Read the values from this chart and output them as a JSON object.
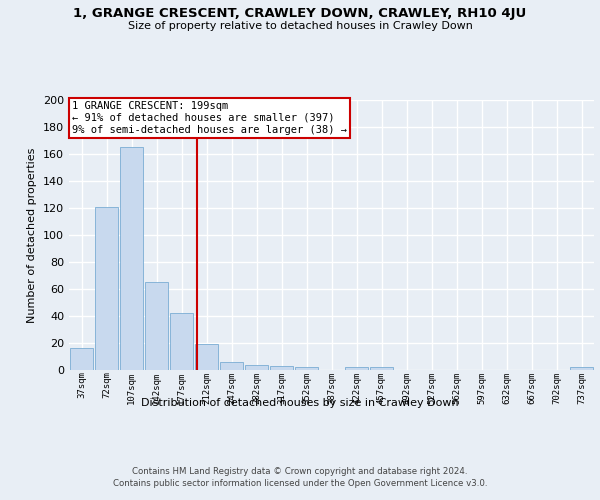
{
  "title": "1, GRANGE CRESCENT, CRAWLEY DOWN, CRAWLEY, RH10 4JU",
  "subtitle": "Size of property relative to detached houses in Crawley Down",
  "xlabel": "Distribution of detached houses by size in Crawley Down",
  "ylabel": "Number of detached properties",
  "bar_labels": [
    "37sqm",
    "72sqm",
    "107sqm",
    "142sqm",
    "177sqm",
    "212sqm",
    "247sqm",
    "282sqm",
    "317sqm",
    "352sqm",
    "387sqm",
    "422sqm",
    "457sqm",
    "492sqm",
    "527sqm",
    "562sqm",
    "597sqm",
    "632sqm",
    "667sqm",
    "702sqm",
    "737sqm"
  ],
  "bar_values": [
    16,
    121,
    165,
    65,
    42,
    19,
    6,
    4,
    3,
    2,
    0,
    2,
    2,
    0,
    0,
    0,
    0,
    0,
    0,
    0,
    2
  ],
  "bar_color": "#c8d9ee",
  "bar_edge_color": "#7aadd4",
  "vline_color": "#cc0000",
  "vline_pos": 4.629,
  "annotation_title": "1 GRANGE CRESCENT: 199sqm",
  "annotation_line1": "← 91% of detached houses are smaller (397)",
  "annotation_line2": "9% of semi-detached houses are larger (38) →",
  "annotation_box_color": "#cc0000",
  "footer1": "Contains HM Land Registry data © Crown copyright and database right 2024.",
  "footer2": "Contains public sector information licensed under the Open Government Licence v3.0.",
  "bg_color": "#e8eef5",
  "plot_bg_color": "#e8eef5",
  "grid_color": "#ffffff",
  "ylim": [
    0,
    200
  ],
  "yticks": [
    0,
    20,
    40,
    60,
    80,
    100,
    120,
    140,
    160,
    180,
    200
  ]
}
